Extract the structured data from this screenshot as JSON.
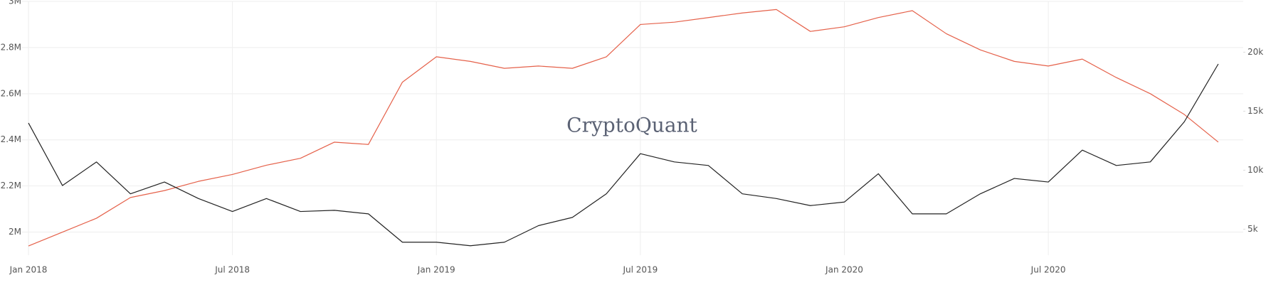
{
  "chart_data": {
    "type": "line",
    "watermark": "CryptoQuant",
    "x": [
      "2018-01",
      "2018-02",
      "2018-03",
      "2018-04",
      "2018-05",
      "2018-06",
      "2018-07",
      "2018-08",
      "2018-09",
      "2018-10",
      "2018-11",
      "2018-12",
      "2019-01",
      "2019-02",
      "2019-03",
      "2019-04",
      "2019-05",
      "2019-06",
      "2019-07",
      "2019-08",
      "2019-09",
      "2019-10",
      "2019-11",
      "2019-12",
      "2020-01",
      "2020-02",
      "2020-03",
      "2020-04",
      "2020-05",
      "2020-06",
      "2020-07",
      "2020-08",
      "2020-09",
      "2020-10",
      "2020-11",
      "2020-12"
    ],
    "xticks": [
      {
        "value": "2018-01",
        "label": "Jan 2018"
      },
      {
        "value": "2018-07",
        "label": "Jul 2018"
      },
      {
        "value": "2019-01",
        "label": "Jan 2019"
      },
      {
        "value": "2019-07",
        "label": "Jul 2019"
      },
      {
        "value": "2020-01",
        "label": "Jan 2020"
      },
      {
        "value": "2020-07",
        "label": "Jul 2020"
      }
    ],
    "ylim": [
      1900000,
      3000000
    ],
    "yticks": [
      {
        "value": 2000000,
        "label": "2M"
      },
      {
        "value": 2200000,
        "label": "2.2M"
      },
      {
        "value": 2400000,
        "label": "2.4M"
      },
      {
        "value": 2600000,
        "label": "2.6M"
      },
      {
        "value": 2800000,
        "label": "2.8M"
      },
      {
        "value": 3000000,
        "label": "3M"
      }
    ],
    "y2lim": [
      2800,
      24300
    ],
    "y2ticks": [
      {
        "value": 5000,
        "label": "5k"
      },
      {
        "value": 10000,
        "label": "10k"
      },
      {
        "value": 15000,
        "label": "15k"
      },
      {
        "value": 20000,
        "label": "20k"
      }
    ],
    "grid": true,
    "series": [
      {
        "color": "#e5614a",
        "values": [
          1940000,
          2000000,
          2060000,
          2150000,
          2180000,
          2220000,
          2250000,
          2290000,
          2320000,
          2390000,
          2380000,
          2650000,
          2760000,
          2740000,
          2710000,
          2720000,
          2710000,
          2760000,
          2900000,
          2910000,
          2930000,
          2950000,
          2965000,
          2870000,
          2890000,
          2930000,
          2960000,
          2860000,
          2790000,
          2740000,
          2720000,
          2750000,
          2670000,
          2600000,
          2510000,
          2390000
        ]
      },
      {
        "color": "#222222",
        "axis": "y2",
        "values": [
          14000,
          8700,
          10700,
          8000,
          9000,
          7600,
          6500,
          7600,
          6500,
          6600,
          6300,
          3900,
          3900,
          3600,
          3900,
          5300,
          6000,
          8000,
          11400,
          10700,
          10400,
          8000,
          7600,
          7000,
          7300,
          9700,
          6300,
          6300,
          8000,
          9300,
          9000,
          11700,
          10400,
          10700,
          14100,
          19000
        ]
      }
    ]
  }
}
